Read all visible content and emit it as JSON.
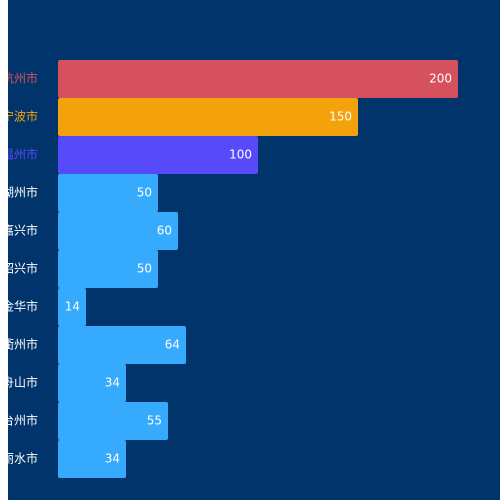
{
  "chart_data": {
    "type": "bar",
    "orientation": "horizontal",
    "categories": [
      "杭州市",
      "宁波市",
      "温州市",
      "湖州市",
      "嘉兴市",
      "绍兴市",
      "金华市",
      "衢州市",
      "舟山市",
      "台州市",
      "丽水市"
    ],
    "values": [
      200,
      150,
      100,
      50,
      60,
      50,
      14,
      64,
      34,
      55,
      34
    ],
    "xlim": [
      0,
      200
    ],
    "grid": false,
    "legend": "none",
    "category_colors": [
      "#d6515e",
      "#f3a20c",
      "#564afa",
      "#ffffff",
      "#ffffff",
      "#ffffff",
      "#ffffff",
      "#ffffff",
      "#ffffff",
      "#ffffff",
      "#ffffff"
    ],
    "bar_colors": [
      "#d6515e",
      "#f3a20c",
      "#564afa",
      "#36aafd",
      "#36aafd",
      "#36aafd",
      "#36aafd",
      "#36aafd",
      "#36aafd",
      "#36aafd",
      "#36aafd"
    ]
  },
  "theme": {
    "background": "#00346a",
    "value_label_color": "#ffffff"
  }
}
